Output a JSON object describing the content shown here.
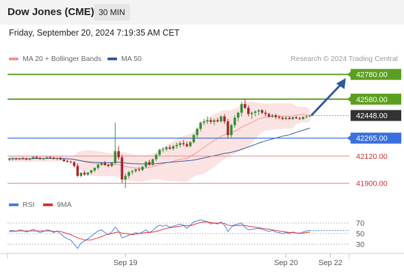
{
  "header": {
    "title": "Dow Jones (CME)",
    "timeframe": "30 MIN"
  },
  "datetime": "Friday, September 20, 2024 7:19:35 AM CET",
  "credit": "Research © 2024 Trading Central",
  "colors": {
    "resistance": "#5aa01e",
    "pivot": "#3a6fe0",
    "support": "#e88585",
    "current": "#333333",
    "up_candle": "#2f8f2f",
    "down_candle": "#a8232b",
    "ma20_band": "#f59393",
    "ma50": "#2f5a9a",
    "arrow": "#2f5a9a",
    "rsi": "#4a7be0",
    "rsi_ma": "#e03030"
  },
  "chart_data": [
    {
      "type": "candlestick",
      "legend": [
        {
          "label": "MA 20 + Bollinger Bands",
          "color": "#f59393"
        },
        {
          "label": "MA 50",
          "color": "#2f5a9a"
        }
      ],
      "ylim": [
        41820,
        42850
      ],
      "x_ticks": [
        {
          "label": "Sep 19",
          "index": 34
        },
        {
          "label": "Sep 20",
          "index": 81
        },
        {
          "label": "Sep 22",
          "index": 94
        }
      ],
      "levels": [
        {
          "label": "42780.00",
          "value": 42780,
          "kind": "resistance"
        },
        {
          "label": "42580.00",
          "value": 42580,
          "kind": "resistance"
        },
        {
          "label": "42448.00",
          "value": 42448,
          "kind": "current"
        },
        {
          "label": "42265.00",
          "value": 42265,
          "kind": "pivot"
        },
        {
          "label": "42120.00",
          "value": 42120,
          "kind": "support"
        },
        {
          "label": "41900.00",
          "value": 41900,
          "kind": "support"
        }
      ],
      "forecast_arrow": {
        "from_value": 42448,
        "to_value": 42750
      },
      "candles": [
        [
          42090,
          42105,
          42080,
          42098
        ],
        [
          42098,
          42110,
          42085,
          42100
        ],
        [
          42100,
          42108,
          42088,
          42094
        ],
        [
          42094,
          42106,
          42086,
          42102
        ],
        [
          42102,
          42112,
          42092,
          42098
        ],
        [
          42098,
          42108,
          42086,
          42092
        ],
        [
          42092,
          42104,
          42084,
          42100
        ],
        [
          42100,
          42118,
          42094,
          42112
        ],
        [
          42112,
          42122,
          42098,
          42104
        ],
        [
          42104,
          42112,
          42090,
          42096
        ],
        [
          42096,
          42106,
          42086,
          42102
        ],
        [
          42102,
          42114,
          42096,
          42110
        ],
        [
          42110,
          42120,
          42100,
          42106
        ],
        [
          42106,
          42114,
          42092,
          42098
        ],
        [
          42098,
          42108,
          42086,
          42104
        ],
        [
          42104,
          42112,
          42088,
          42092
        ],
        [
          42092,
          42100,
          42074,
          42080
        ],
        [
          42080,
          42090,
          42066,
          42074
        ],
        [
          42074,
          42082,
          42060,
          42070
        ],
        [
          42070,
          42078,
          42028,
          42040
        ],
        [
          42040,
          42060,
          41950,
          41960
        ],
        [
          41960,
          41990,
          41950,
          41984
        ],
        [
          41984,
          42000,
          41962,
          41970
        ],
        [
          41970,
          41990,
          41960,
          41986
        ],
        [
          41986,
          42010,
          41974,
          42004
        ],
        [
          42004,
          42030,
          41990,
          42024
        ],
        [
          42024,
          42060,
          42010,
          42050
        ],
        [
          42050,
          42070,
          42040,
          42064
        ],
        [
          42064,
          42080,
          42040,
          42048
        ],
        [
          42048,
          42058,
          42030,
          42040
        ],
        [
          42040,
          42070,
          42030,
          42064
        ],
        [
          42064,
          42390,
          42050,
          42160
        ],
        [
          42160,
          42200,
          42090,
          42110
        ],
        [
          42110,
          42130,
          41900,
          41930
        ],
        [
          41930,
          41980,
          41860,
          41960
        ],
        [
          41960,
          42000,
          41940,
          41990
        ],
        [
          41990,
          42010,
          41970,
          41998
        ],
        [
          41998,
          42020,
          41986,
          42012
        ],
        [
          42012,
          42030,
          41996,
          42008
        ],
        [
          42008,
          42040,
          41998,
          42034
        ],
        [
          42034,
          42080,
          42020,
          42072
        ],
        [
          42072,
          42090,
          42040,
          42050
        ],
        [
          42050,
          42100,
          42040,
          42094
        ],
        [
          42094,
          42140,
          42080,
          42130
        ],
        [
          42130,
          42180,
          42116,
          42170
        ],
        [
          42170,
          42190,
          42150,
          42176
        ],
        [
          42176,
          42200,
          42160,
          42190
        ],
        [
          42190,
          42210,
          42170,
          42180
        ],
        [
          42180,
          42210,
          42166,
          42200
        ],
        [
          42200,
          42230,
          42180,
          42210
        ],
        [
          42210,
          42240,
          42190,
          42224
        ],
        [
          42224,
          42250,
          42200,
          42216
        ],
        [
          42216,
          42236,
          42190,
          42200
        ],
        [
          42200,
          42240,
          42190,
          42232
        ],
        [
          42232,
          42300,
          42220,
          42290
        ],
        [
          42290,
          42350,
          42270,
          42340
        ],
        [
          42340,
          42400,
          42320,
          42390
        ],
        [
          42390,
          42420,
          42370,
          42400
        ],
        [
          42400,
          42440,
          42380,
          42410
        ],
        [
          42410,
          42430,
          42380,
          42396
        ],
        [
          42396,
          42420,
          42370,
          42410
        ],
        [
          42410,
          42430,
          42390,
          42400
        ],
        [
          42400,
          42450,
          42390,
          42440
        ],
        [
          42440,
          42460,
          42380,
          42400
        ],
        [
          42400,
          42420,
          42260,
          42290
        ],
        [
          42290,
          42380,
          42270,
          42370
        ],
        [
          42370,
          42450,
          42350,
          42430
        ],
        [
          42430,
          42480,
          42400,
          42470
        ],
        [
          42470,
          42560,
          42440,
          42540
        ],
        [
          42540,
          42580,
          42500,
          42510
        ],
        [
          42510,
          42530,
          42440,
          42460
        ],
        [
          42460,
          42480,
          42420,
          42470
        ],
        [
          42470,
          42490,
          42440,
          42480
        ],
        [
          42480,
          42500,
          42450,
          42490
        ],
        [
          42490,
          42500,
          42460,
          42470
        ],
        [
          42470,
          42490,
          42440,
          42460
        ],
        [
          42460,
          42470,
          42430,
          42440
        ],
        [
          42440,
          42460,
          42430,
          42450
        ],
        [
          42450,
          42460,
          42420,
          42436
        ],
        [
          42436,
          42450,
          42420,
          42430
        ],
        [
          42430,
          42440,
          42410,
          42420
        ],
        [
          42420,
          42440,
          42410,
          42430
        ],
        [
          42430,
          42440,
          42414,
          42420
        ],
        [
          42420,
          42438,
          42412,
          42434
        ],
        [
          42434,
          42444,
          42420,
          42426
        ],
        [
          42426,
          42436,
          42412,
          42420
        ],
        [
          42420,
          42440,
          42414,
          42436
        ],
        [
          42436,
          42450,
          42426,
          42442
        ],
        [
          42442,
          42452,
          42434,
          42448
        ]
      ],
      "x_slots": 100
    },
    {
      "type": "line",
      "legend": [
        {
          "label": "RSI",
          "color": "#4a7be0"
        },
        {
          "label": "9MA",
          "color": "#e03030"
        }
      ],
      "ylim": [
        15,
        85
      ],
      "y_ticks": [
        "70",
        "50",
        "30"
      ],
      "y_tick_values": [
        70,
        50,
        30
      ],
      "series": [
        {
          "name": "RSI",
          "values": [
            55,
            56,
            54,
            57,
            56,
            53,
            55,
            58,
            55,
            52,
            54,
            57,
            56,
            52,
            55,
            50,
            44,
            40,
            38,
            30,
            22,
            32,
            36,
            40,
            45,
            50,
            55,
            57,
            52,
            48,
            53,
            62,
            55,
            42,
            44,
            47,
            49,
            52,
            50,
            53,
            57,
            52,
            56,
            62,
            66,
            64,
            66,
            62,
            64,
            66,
            68,
            66,
            60,
            66,
            72,
            74,
            76,
            74,
            73,
            68,
            70,
            68,
            72,
            66,
            54,
            62,
            67,
            68,
            70,
            62,
            57,
            58,
            59,
            60,
            58,
            56,
            54,
            56,
            53,
            52,
            50,
            52,
            50,
            53,
            51,
            50,
            53,
            55,
            56
          ]
        },
        {
          "name": "9MA",
          "values": [
            54,
            54,
            55,
            55,
            55,
            55,
            55,
            55,
            55,
            55,
            55,
            55,
            55,
            54,
            54,
            54,
            52,
            50,
            48,
            45,
            42,
            40,
            38,
            38,
            38,
            40,
            42,
            44,
            47,
            49,
            50,
            52,
            53,
            51,
            50,
            49,
            48,
            49,
            50,
            51,
            52,
            52,
            53,
            54,
            56,
            58,
            60,
            61,
            62,
            63,
            64,
            65,
            65,
            65,
            67,
            69,
            71,
            72,
            72,
            71,
            70,
            70,
            70,
            69,
            66,
            65,
            65,
            65,
            66,
            65,
            64,
            63,
            62,
            61,
            60,
            59,
            58,
            57,
            56,
            55,
            54,
            53,
            52,
            52,
            51,
            51,
            51,
            52,
            53
          ]
        }
      ]
    }
  ]
}
